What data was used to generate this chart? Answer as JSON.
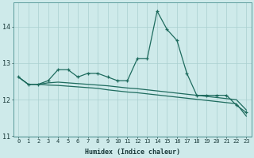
{
  "xlabel": "Humidex (Indice chaleur)",
  "bg_color": "#ceeaea",
  "grid_color": "#aacfcf",
  "line_color": "#1e6b5e",
  "xlim": [
    -0.5,
    23.5
  ],
  "ylim": [
    11.0,
    14.65
  ],
  "yticks": [
    11,
    12,
    13,
    14
  ],
  "xticks": [
    0,
    1,
    2,
    3,
    4,
    5,
    6,
    7,
    8,
    9,
    10,
    11,
    12,
    13,
    14,
    15,
    16,
    17,
    18,
    19,
    20,
    21,
    22,
    23
  ],
  "series1": [
    12.62,
    12.42,
    12.42,
    12.52,
    12.82,
    12.82,
    12.62,
    12.72,
    12.72,
    12.62,
    12.52,
    12.52,
    13.12,
    13.12,
    14.42,
    13.92,
    13.62,
    12.72,
    12.12,
    12.12,
    12.12,
    12.12,
    11.85,
    11.65
  ],
  "series2": [
    12.62,
    12.42,
    12.42,
    12.46,
    12.48,
    12.46,
    12.44,
    12.42,
    12.4,
    12.38,
    12.35,
    12.32,
    12.3,
    12.27,
    12.24,
    12.21,
    12.18,
    12.15,
    12.12,
    12.09,
    12.06,
    12.03,
    12.0,
    11.72
  ],
  "series3": [
    12.62,
    12.42,
    12.42,
    12.4,
    12.39,
    12.37,
    12.35,
    12.33,
    12.31,
    12.27,
    12.24,
    12.21,
    12.19,
    12.16,
    12.13,
    12.1,
    12.07,
    12.04,
    12.01,
    11.98,
    11.95,
    11.92,
    11.89,
    11.55
  ]
}
